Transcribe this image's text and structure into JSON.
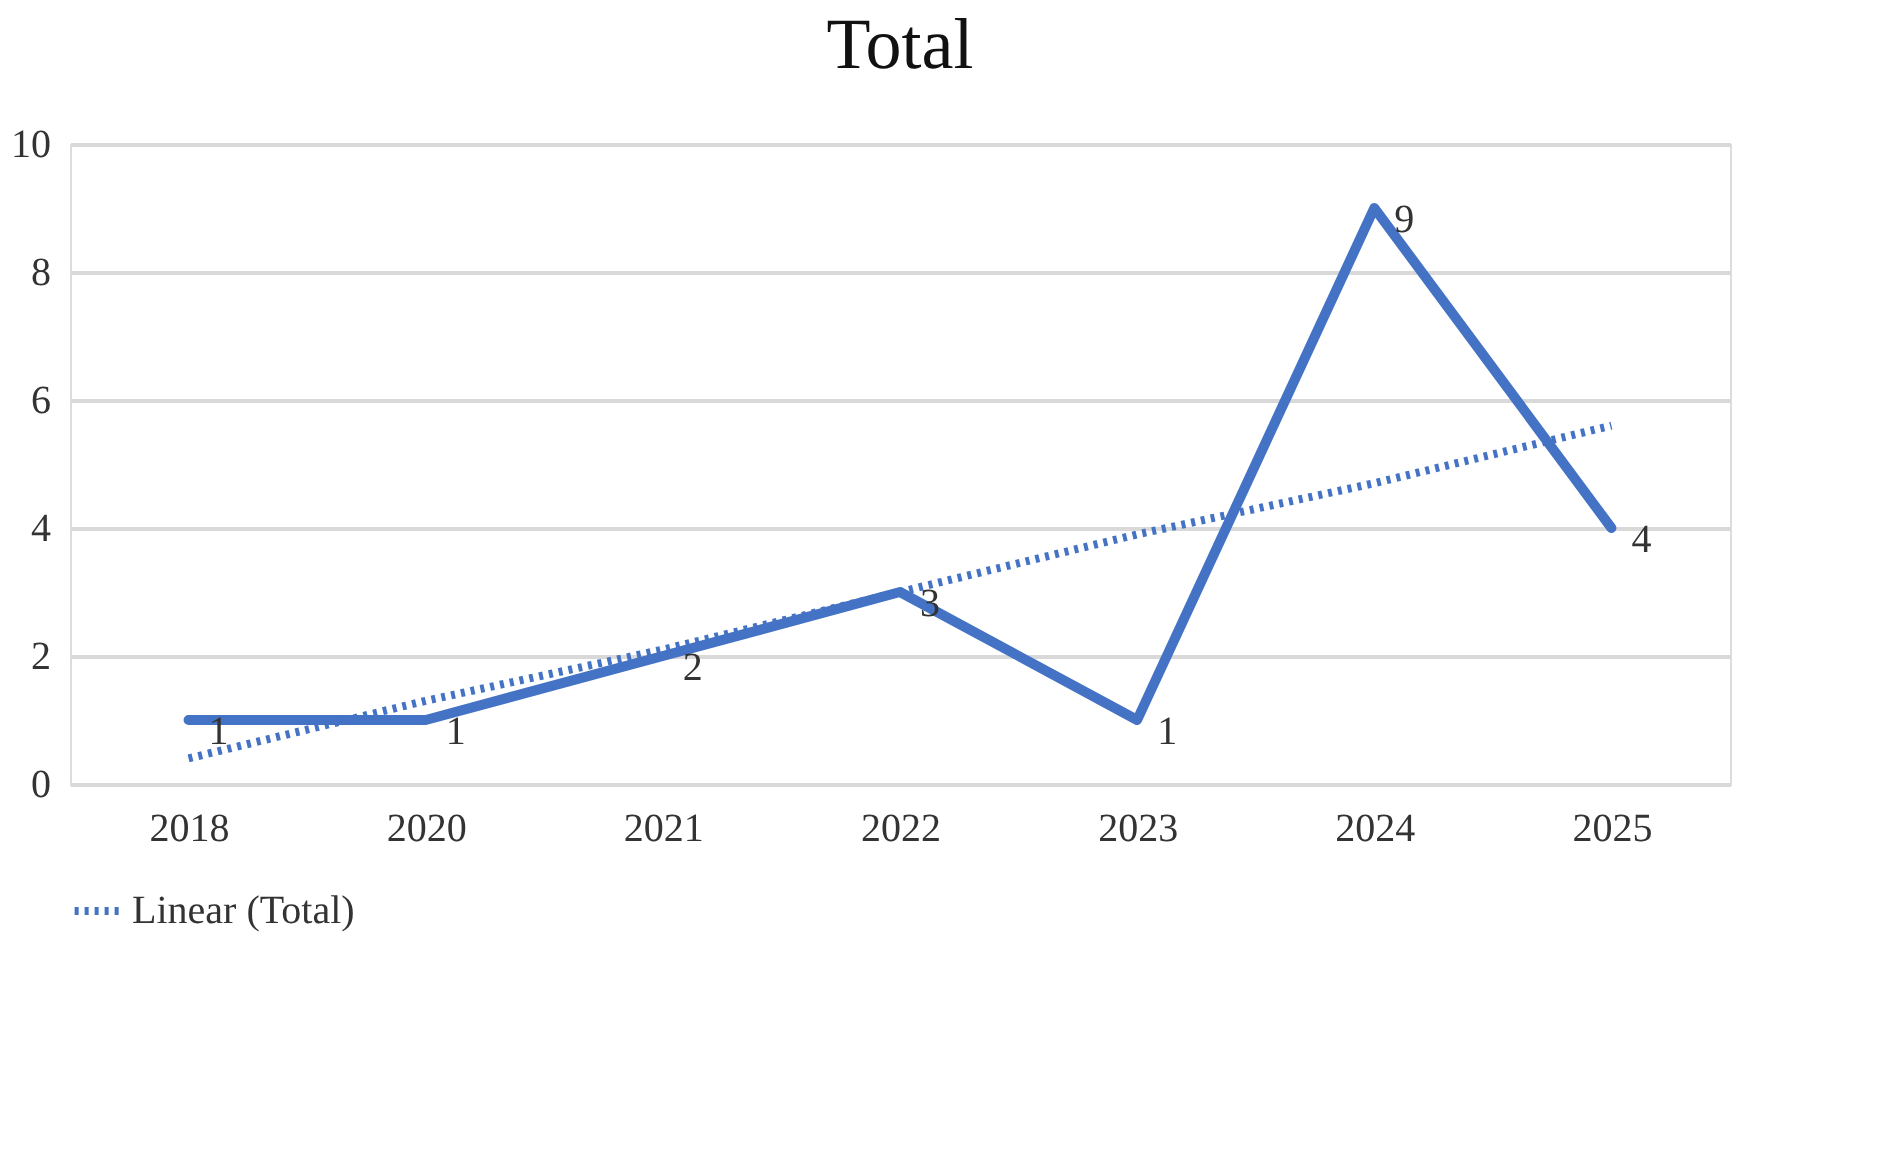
{
  "chart_data": {
    "type": "line",
    "title": "Total",
    "categories": [
      "2018",
      "2020",
      "2021",
      "2022",
      "2023",
      "2024",
      "2025"
    ],
    "series": [
      {
        "color": "#4472c4",
        "values": [
          1,
          1,
          2,
          3,
          1,
          9,
          4
        ],
        "data_labels": true,
        "line_style": "solid"
      },
      {
        "name": "Linear (Total)",
        "type": "line",
        "color": "#4472c4",
        "values": [
          0.4,
          1.3,
          2.1,
          3.0,
          3.9,
          4.7,
          5.6
        ],
        "line_style": "dotted"
      }
    ],
    "ylim": [
      0,
      10
    ],
    "yticks": [
      0,
      2,
      4,
      6,
      8,
      10
    ],
    "grid": "y",
    "legend": "bottom",
    "marker": "none"
  }
}
